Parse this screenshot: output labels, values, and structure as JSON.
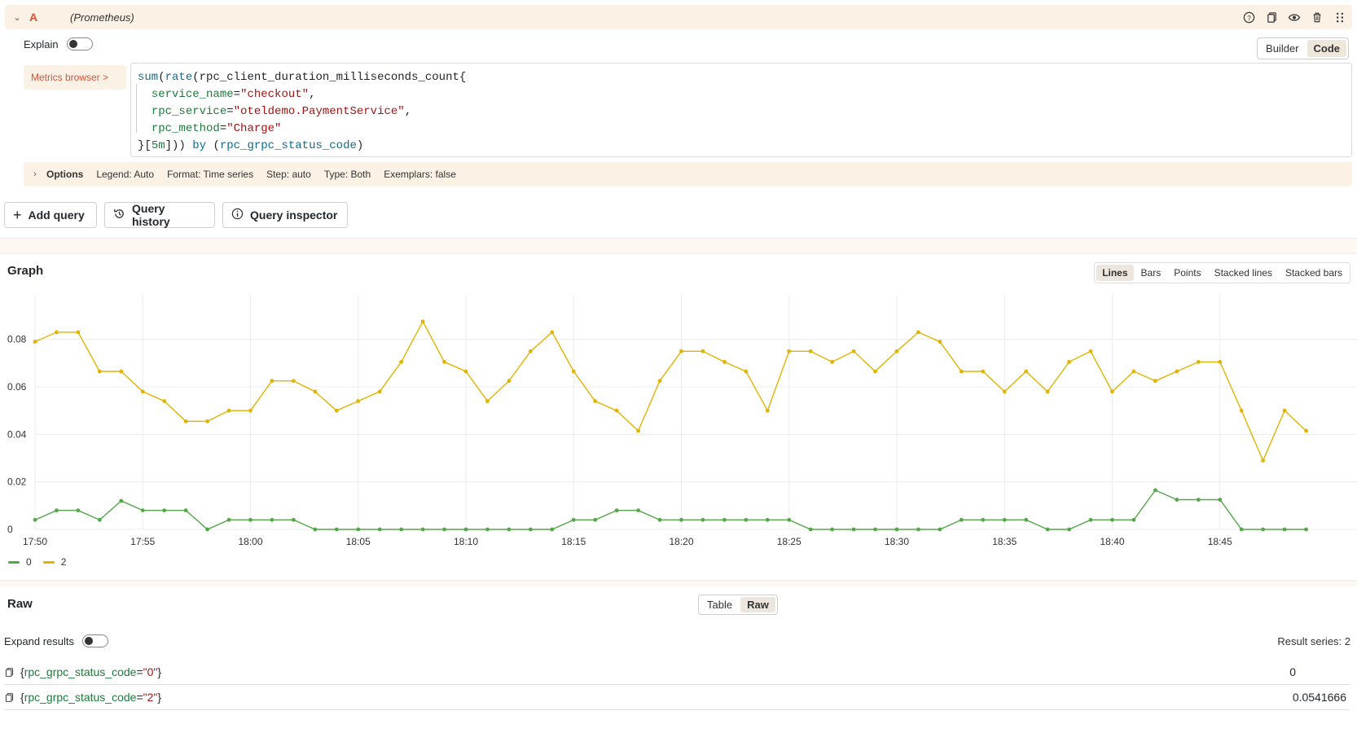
{
  "query_row": {
    "letter": "A",
    "datasource": "(Prometheus)",
    "icons": [
      "help-icon",
      "duplicate-icon",
      "eye-icon",
      "trash-icon",
      "drag-handle-icon"
    ]
  },
  "explain": {
    "label": "Explain",
    "enabled": false
  },
  "editor_mode": {
    "builder": "Builder",
    "code": "Code",
    "active": "Code"
  },
  "metrics_browser": {
    "label": "Metrics browser >"
  },
  "query": {
    "line1_fn1": "sum",
    "line1_p1": "(",
    "line1_fn2": "rate",
    "line1_rest": "(rpc_client_duration_milliseconds_count{",
    "line2_key": "service_name",
    "line2_eq": "=",
    "line2_val": "\"checkout\"",
    "line2_comma": ",",
    "line3_key": "rpc_service",
    "line3_eq": "=",
    "line3_val": "\"oteldemo.PaymentService\"",
    "line3_comma": ",",
    "line4_key": "rpc_method",
    "line4_eq": "=",
    "line4_val": "\"Charge\"",
    "line5_open": "}[",
    "line5_dur": "5m",
    "line5_close": "])) ",
    "line5_by": "by",
    "line5_paren": " (",
    "line5_label": "rpc_grpc_status_code",
    "line5_end": ")"
  },
  "options": {
    "title": "Options",
    "legend": "Legend: Auto",
    "format": "Format: Time series",
    "step": "Step: auto",
    "type": "Type: Both",
    "exemplars": "Exemplars: false"
  },
  "buttons": {
    "add_query": "Add query",
    "query_history": "Query history",
    "query_inspector": "Query inspector"
  },
  "graph": {
    "title": "Graph",
    "types": [
      "Lines",
      "Bars",
      "Points",
      "Stacked lines",
      "Stacked bars"
    ],
    "active_type": "Lines"
  },
  "chart_data": {
    "type": "line",
    "title": "",
    "xlabel": "",
    "ylabel": "",
    "ylim": [
      0,
      0.096
    ],
    "grid": true,
    "legend_placement": "bottom-left",
    "x_ticks": [
      "17:50",
      "17:55",
      "18:00",
      "18:05",
      "18:10",
      "18:15",
      "18:20",
      "18:25",
      "18:30",
      "18:35",
      "18:40",
      "18:45"
    ],
    "y_ticks": [
      0,
      0.02,
      0.04,
      0.06,
      0.08
    ],
    "y_tick_labels": [
      "0",
      "0.02",
      "0.04",
      "0.06",
      "0.08"
    ],
    "x_start": "17:50",
    "x_step_minutes": 1,
    "series": [
      {
        "name": "0",
        "color": "#56a64b",
        "values": [
          0.004,
          0.008,
          0.008,
          0.004,
          0.012,
          0.008,
          0.008,
          0.008,
          0.0,
          0.004,
          0.004,
          0.004,
          0.004,
          0.0,
          0.0,
          0.0,
          0.0,
          0.0,
          0.0,
          0.0,
          0.0,
          0.0,
          0.0,
          0.0,
          0.0,
          0.004,
          0.004,
          0.008,
          0.008,
          0.004,
          0.004,
          0.004,
          0.004,
          0.004,
          0.004,
          0.004,
          0.0,
          0.0,
          0.0,
          0.0,
          0.0,
          0.0,
          0.0,
          0.004,
          0.004,
          0.004,
          0.004,
          0.0,
          0.0,
          0.004,
          0.004,
          0.004,
          0.0165,
          0.0125,
          0.0125,
          0.0125,
          0.0,
          0.0,
          0.0,
          0.0
        ]
      },
      {
        "name": "2",
        "color": "#e0b400",
        "values": [
          0.079,
          0.083,
          0.083,
          0.0665,
          0.0665,
          0.058,
          0.054,
          0.0455,
          0.0455,
          0.05,
          0.05,
          0.0625,
          0.0625,
          0.058,
          0.05,
          0.054,
          0.058,
          0.0705,
          0.0875,
          0.0705,
          0.0665,
          0.054,
          0.0625,
          0.075,
          0.083,
          0.0665,
          0.054,
          0.05,
          0.0415,
          0.0625,
          0.075,
          0.075,
          0.0705,
          0.0665,
          0.05,
          0.075,
          0.075,
          0.0705,
          0.075,
          0.0665,
          0.075,
          0.083,
          0.079,
          0.0665,
          0.0665,
          0.058,
          0.0665,
          0.058,
          0.0705,
          0.075,
          0.058,
          0.0665,
          0.0625,
          0.0665,
          0.0705,
          0.0705,
          0.05,
          0.029,
          0.05,
          0.0415
        ]
      }
    ]
  },
  "raw": {
    "title": "Raw",
    "switch": [
      "Table",
      "Raw"
    ],
    "active": "Raw",
    "expand_label": "Expand results",
    "result_series": "Result series: 2",
    "rows": [
      {
        "open": "{",
        "key": "rpc_grpc_status_code",
        "eq": "=",
        "val": "\"0\"",
        "close": "}",
        "value": "0"
      },
      {
        "open": "{",
        "key": "rpc_grpc_status_code",
        "eq": "=",
        "val": "\"2\"",
        "close": "}",
        "value": "0.0541666"
      }
    ]
  }
}
